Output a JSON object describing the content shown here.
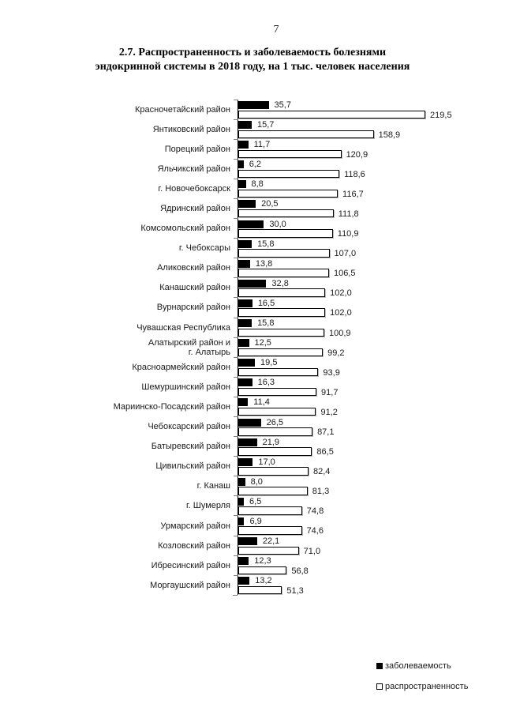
{
  "page": {
    "number": "7"
  },
  "title": {
    "line1": "2.7. Распространенность и заболеваемость болезнями",
    "line2": "эндокринной системы в 2018 году, на 1 тыс. человек населения"
  },
  "chart_data": {
    "type": "bar",
    "orientation": "horizontal",
    "title": "2.7. Распространенность и заболеваемость болезнями эндокринной системы в 2018 году, на 1 тыс. человек населения",
    "xlim": [
      0,
      240
    ],
    "grid": false,
    "legend_position": "right-bottom",
    "value_format": "comma-decimal",
    "categories": [
      "Красночетайский район",
      "Янтиковский район",
      "Порецкий район",
      "Яльчикский район",
      "г. Новочебоксарск",
      "Ядринский район",
      "Комсомольский район",
      "г. Чебоксары",
      "Аликовский район",
      "Канашский район",
      "Вурнарский район",
      "Чувашская Республика",
      "Алатырский район  и\nг. Алатырь",
      "Красноармейский район",
      "Шемуршинский район",
      "Мариинско-Посадский район",
      "Чебоксарский район",
      "Батыревский район",
      "Цивильский район",
      "г. Канаш",
      "г. Шумерля",
      "Урмарский район",
      "Козловский район",
      "Ибресинский район",
      "Моргаушский район"
    ],
    "series": [
      {
        "name": "заболеваемость",
        "color": "#000000",
        "values": [
          35.7,
          15.7,
          11.7,
          6.2,
          8.8,
          20.5,
          30.0,
          15.8,
          13.8,
          32.8,
          16.5,
          15.8,
          12.5,
          19.5,
          16.3,
          11.4,
          26.5,
          21.9,
          17.0,
          8.0,
          6.5,
          6.9,
          22.1,
          12.3,
          13.2
        ],
        "labels": [
          "35,7",
          "15,7",
          "11,7",
          "6,2",
          "8,8",
          "20,5",
          "30,0",
          "15,8",
          "13,8",
          "32,8",
          "16,5",
          "15,8",
          "12,5",
          "19,5",
          "16,3",
          "11,4",
          "26,5",
          "21,9",
          "17,0",
          "8,0",
          "6,5",
          "6,9",
          "22,1",
          "12,3",
          "13,2"
        ]
      },
      {
        "name": "распространенность",
        "color": "#ffffff",
        "values": [
          219.5,
          158.9,
          120.9,
          118.6,
          116.7,
          111.8,
          110.9,
          107.0,
          106.5,
          102.0,
          102.0,
          100.9,
          99.2,
          93.9,
          91.7,
          91.2,
          87.1,
          86.5,
          82.4,
          81.3,
          74.8,
          74.6,
          71.0,
          56.8,
          51.3
        ],
        "labels": [
          "219,5",
          "158,9",
          "120,9",
          "118,6",
          "116,7",
          "111,8",
          "110,9",
          "107,0",
          "106,5",
          "102,0",
          "102,0",
          "100,9",
          "99,2",
          "93,9",
          "91,7",
          "91,2",
          "87,1",
          "86,5",
          "82,4",
          "81,3",
          "74,8",
          "74,6",
          "71,0",
          "56,8",
          "51,3"
        ]
      }
    ]
  }
}
